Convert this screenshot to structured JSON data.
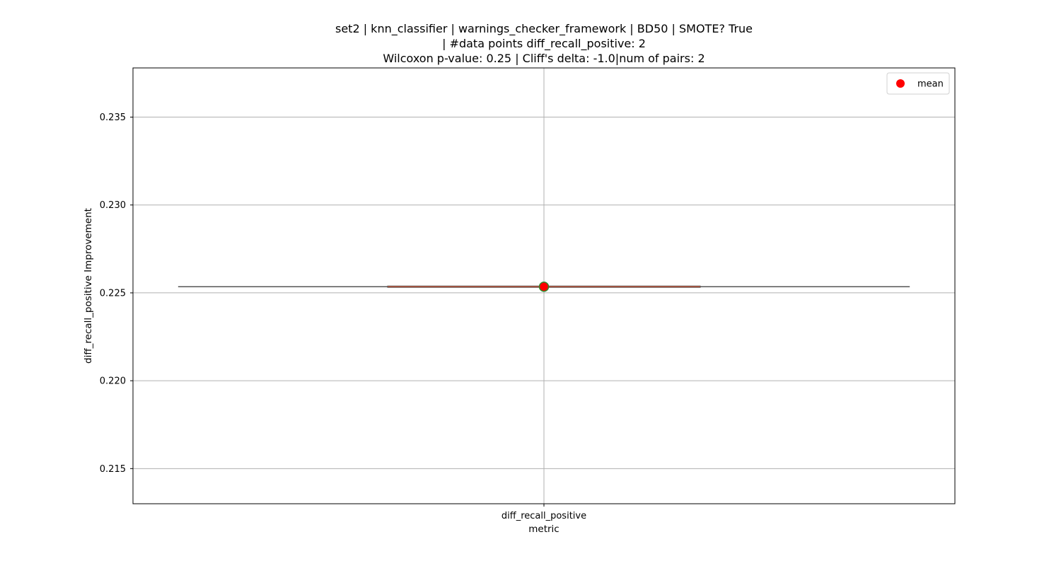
{
  "chart_data": {
    "type": "box",
    "title_lines": [
      "set2 | knn_classifier | warnings_checker_framework | BD50 | SMOTE? True",
      "| #data points diff_recall_positive: 2",
      "Wilcoxon p-value: 0.25 | Cliff's delta: -1.0|num of pairs: 2"
    ],
    "xlabel": "metric",
    "ylabel": "diff_recall_positive Improvement",
    "categories": [
      "diff_recall_positive"
    ],
    "ylim": [
      0.213,
      0.2378
    ],
    "yticks": [
      0.215,
      0.22,
      0.225,
      0.23,
      0.235
    ],
    "ytick_labels": [
      "0.215",
      "0.220",
      "0.225",
      "0.230",
      "0.235"
    ],
    "grid": true,
    "legend": {
      "position": "top-right",
      "entries": [
        {
          "label": "mean",
          "color": "#ff0000"
        }
      ]
    },
    "boxes": [
      {
        "category": "diff_recall_positive",
        "min": 0.22535,
        "q1": 0.22535,
        "median": 0.22535,
        "q3": 0.22535,
        "max": 0.22535,
        "mean": 0.22535
      }
    ],
    "colors": {
      "mean_fill": "#ff0000",
      "mean_edge": "#2e8b2e",
      "box_line": "#555555",
      "median_line": "#b5523b",
      "grid": "#b0b0b0"
    }
  }
}
